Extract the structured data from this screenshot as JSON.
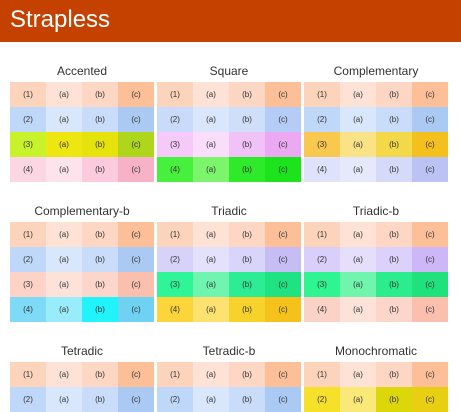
{
  "app": {
    "title": "Strapless"
  },
  "panels": [
    {
      "title": "Accented",
      "rows": [
        {
          "labels": [
            "(1)",
            "(a)",
            "(b)",
            "(c)"
          ],
          "colors": [
            "#fcd3bb",
            "#fde2d5",
            "#fdd6c4",
            "#fcbf98"
          ]
        },
        {
          "labels": [
            "(2)",
            "(a)",
            "(b)",
            "(c)"
          ],
          "colors": [
            "#bfd7f9",
            "#d9e7fc",
            "#c9dcf9",
            "#aacaf3"
          ]
        },
        {
          "labels": [
            "(3)",
            "(a)",
            "(b)",
            "(c)"
          ],
          "colors": [
            "#c8f22a",
            "#ede610",
            "#e6e20b",
            "#aed71b"
          ]
        },
        {
          "labels": [
            "(4)",
            "(a)",
            "(b)",
            "(c)"
          ],
          "colors": [
            "#fdd6e4",
            "#fde3ec",
            "#fccadd",
            "#f8b2c8"
          ]
        }
      ]
    },
    {
      "title": "Square",
      "rows": [
        {
          "labels": [
            "(1)",
            "(a)",
            "(b)",
            "(c)"
          ],
          "colors": [
            "#fcd3bb",
            "#fde2d5",
            "#fdd6c4",
            "#fcbf98"
          ]
        },
        {
          "labels": [
            "(2)",
            "(a)",
            "(b)",
            "(c)"
          ],
          "colors": [
            "#c9dafa",
            "#dae6fc",
            "#cfdef9",
            "#b5cdf6"
          ]
        },
        {
          "labels": [
            "(3)",
            "(a)",
            "(b)",
            "(c)"
          ],
          "colors": [
            "#f5c9f8",
            "#f9ddfb",
            "#f1c2f7",
            "#eaa9f2"
          ]
        },
        {
          "labels": [
            "(4)",
            "(a)",
            "(b)",
            "(c)"
          ],
          "colors": [
            "#46f03c",
            "#7cf56d",
            "#2eea2b",
            "#1de31d"
          ]
        }
      ]
    },
    {
      "title": "Complementary",
      "rows": [
        {
          "labels": [
            "(1)",
            "(a)",
            "(b)",
            "(c)"
          ],
          "colors": [
            "#fcd3bb",
            "#fde2d5",
            "#fdd6c4",
            "#fcbf98"
          ]
        },
        {
          "labels": [
            "(2)",
            "(a)",
            "(b)",
            "(c)"
          ],
          "colors": [
            "#bfd7f9",
            "#d9e7fc",
            "#c9dcf9",
            "#aacaf3"
          ]
        },
        {
          "labels": [
            "(3)",
            "(a)",
            "(b)",
            "(c)"
          ],
          "colors": [
            "#f8c84f",
            "#fae286",
            "#f3d94a",
            "#f4c01d"
          ]
        },
        {
          "labels": [
            "(4)",
            "(a)",
            "(b)",
            "(c)"
          ],
          "colors": [
            "#dee2fb",
            "#e6e9fc",
            "#d5daf9",
            "#bac3f4"
          ]
        }
      ]
    },
    {
      "title": "Complementary-b",
      "rows": [
        {
          "labels": [
            "(1)",
            "(a)",
            "(b)",
            "(c)"
          ],
          "colors": [
            "#fcd3bb",
            "#fde2d5",
            "#fdd6c4",
            "#fcbf98"
          ]
        },
        {
          "labels": [
            "(2)",
            "(a)",
            "(b)",
            "(c)"
          ],
          "colors": [
            "#bfd7f9",
            "#d9e7fc",
            "#c9dcf9",
            "#aacaf3"
          ]
        },
        {
          "labels": [
            "(3)",
            "(a)",
            "(b)",
            "(c)"
          ],
          "colors": [
            "#fcd3c6",
            "#fde2da",
            "#fdd6cb",
            "#fbc0ad"
          ]
        },
        {
          "labels": [
            "(4)",
            "(a)",
            "(b)",
            "(c)"
          ],
          "colors": [
            "#7fdaf7",
            "#99ecfb",
            "#21f3fa",
            "#6fd2f3"
          ]
        }
      ]
    },
    {
      "title": "Triadic",
      "rows": [
        {
          "labels": [
            "(1)",
            "(a)",
            "(b)",
            "(c)"
          ],
          "colors": [
            "#fcd3bb",
            "#fde2d5",
            "#fdd6c4",
            "#fcbf98"
          ]
        },
        {
          "labels": [
            "(2)",
            "(a)",
            "(b)",
            "(c)"
          ],
          "colors": [
            "#d6d2fa",
            "#e4e1fc",
            "#d9d5fa",
            "#c6bdf5"
          ]
        },
        {
          "labels": [
            "(3)",
            "(a)",
            "(b)",
            "(c)"
          ],
          "colors": [
            "#2ef597",
            "#6ff5b0",
            "#2ced93",
            "#1fe283"
          ]
        },
        {
          "labels": [
            "(4)",
            "(a)",
            "(b)",
            "(c)"
          ],
          "colors": [
            "#fcd53a",
            "#fde26f",
            "#f6d22b",
            "#f5c21b"
          ]
        }
      ]
    },
    {
      "title": "Triadic-b",
      "rows": [
        {
          "labels": [
            "(1)",
            "(a)",
            "(b)",
            "(c)"
          ],
          "colors": [
            "#fcd3bb",
            "#fde2d5",
            "#fdd6c4",
            "#fcbf98"
          ]
        },
        {
          "labels": [
            "(2)",
            "(a)",
            "(b)",
            "(c)"
          ],
          "colors": [
            "#dacefa",
            "#e6dffc",
            "#dcd1fa",
            "#cdb7f6"
          ]
        },
        {
          "labels": [
            "(3)",
            "(a)",
            "(b)",
            "(c)"
          ],
          "colors": [
            "#2ef591",
            "#6ff5ac",
            "#2ced8d",
            "#1fe27c"
          ]
        },
        {
          "labels": [
            "(4)",
            "(a)",
            "(b)",
            "(c)"
          ],
          "colors": [
            "#fbd2c6",
            "#fde2da",
            "#fcd6cb",
            "#fac0ad"
          ]
        }
      ]
    },
    {
      "title": "Tetradic",
      "rows": [
        {
          "labels": [
            "(1)",
            "(a)",
            "(b)",
            "(c)"
          ],
          "colors": [
            "#fcd3bb",
            "#fde2d5",
            "#fdd6c4",
            "#fcbf98"
          ]
        },
        {
          "labels": [
            "(2)",
            "(a)",
            "(b)",
            "(c)"
          ],
          "colors": [
            "#bfd7f9",
            "#d9e7fc",
            "#c9dcf9",
            "#aacaf3"
          ]
        }
      ]
    },
    {
      "title": "Tetradic-b",
      "rows": [
        {
          "labels": [
            "(1)",
            "(a)",
            "(b)",
            "(c)"
          ],
          "colors": [
            "#fcd3bb",
            "#fde2d5",
            "#fdd6c4",
            "#fcbf98"
          ]
        },
        {
          "labels": [
            "(2)",
            "(a)",
            "(b)",
            "(c)"
          ],
          "colors": [
            "#bfd7f9",
            "#d9e7fc",
            "#c9dcf9",
            "#aacaf3"
          ]
        }
      ]
    },
    {
      "title": "Monochromatic",
      "rows": [
        {
          "labels": [
            "(1)",
            "(a)",
            "(b)",
            "(c)"
          ],
          "colors": [
            "#fcd3bb",
            "#fde2d5",
            "#fdd6c4",
            "#fcbf98"
          ]
        },
        {
          "labels": [
            "(2)",
            "(a)",
            "(b)",
            "(c)"
          ],
          "colors": [
            "#f6e02a",
            "#fae878",
            "#dcd70b",
            "#e8cf12"
          ]
        }
      ]
    }
  ]
}
